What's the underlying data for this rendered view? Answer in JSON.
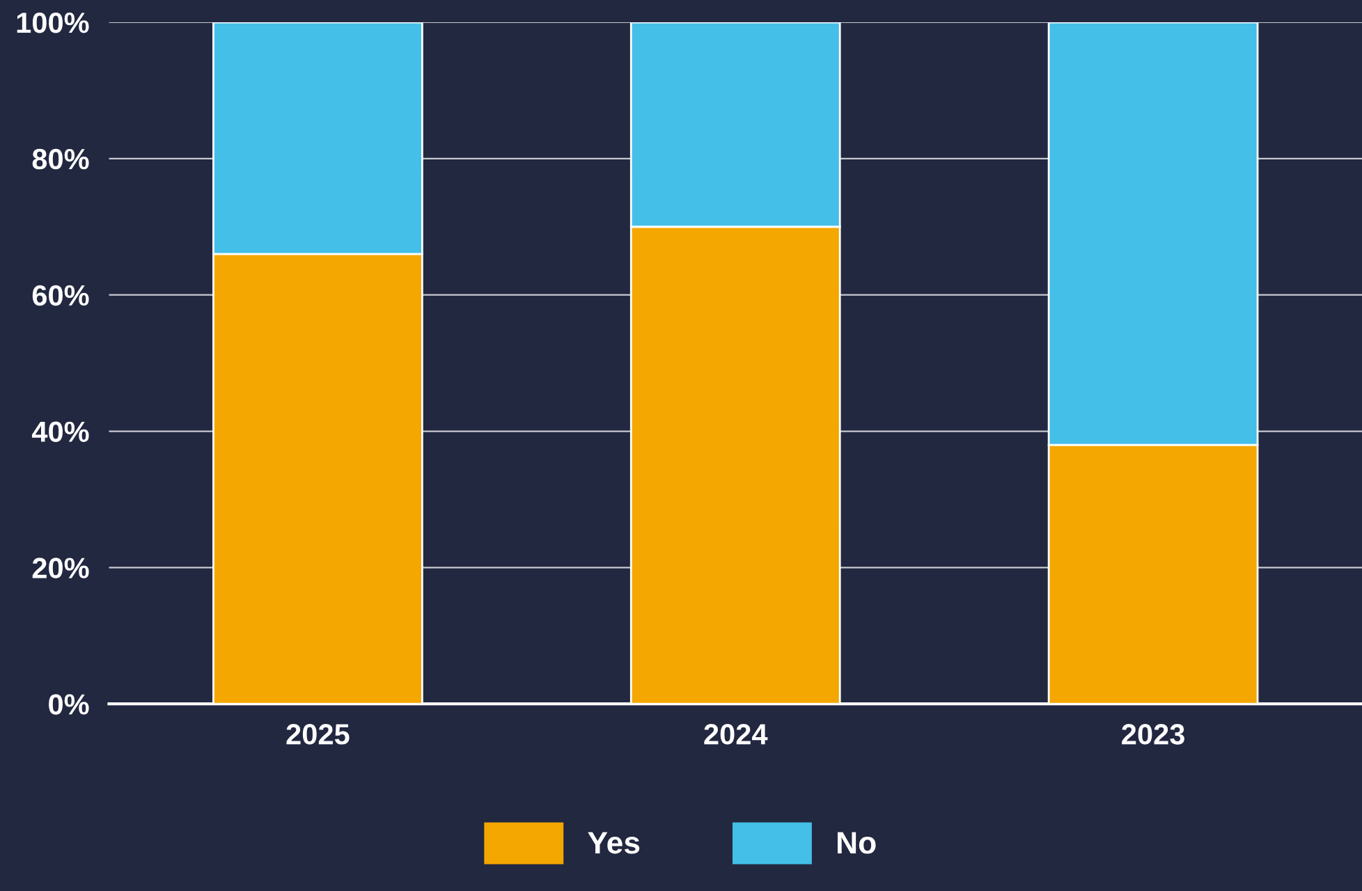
{
  "chart_data": {
    "type": "bar",
    "stacked": true,
    "categories": [
      "2025",
      "2024",
      "2023"
    ],
    "series": [
      {
        "name": "Yes",
        "color": "#f4a700",
        "values": [
          66,
          70,
          38
        ]
      },
      {
        "name": "No",
        "color": "#44bfe8",
        "values": [
          34,
          30,
          62
        ]
      }
    ],
    "ylim": [
      0,
      100
    ],
    "yticks": [
      {
        "value": 0,
        "label": "0%"
      },
      {
        "value": 20,
        "label": "20%"
      },
      {
        "value": 40,
        "label": "40%"
      },
      {
        "value": 60,
        "label": "60%"
      },
      {
        "value": 80,
        "label": "80%"
      },
      {
        "value": 100,
        "label": "100%"
      }
    ],
    "grid": "y",
    "legend": "bottom"
  }
}
